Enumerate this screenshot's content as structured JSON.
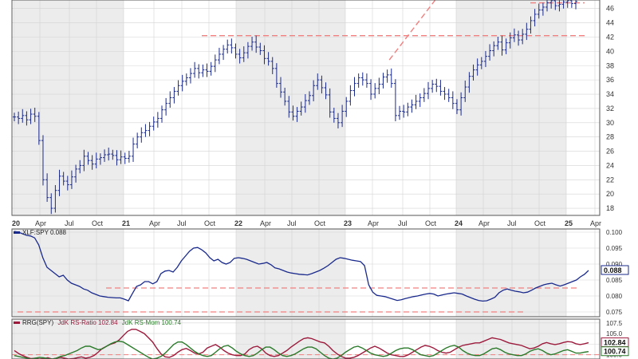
{
  "chart_data": [
    {
      "type": "ohlc",
      "title": "",
      "ylim": [
        17,
        47.2
      ],
      "y_ticks": [
        18,
        20,
        22,
        24,
        26,
        28,
        30,
        32,
        34,
        36,
        38,
        40,
        42,
        44,
        46
      ],
      "x_ticks": [
        "20",
        "Apr",
        "Jul",
        "Oct",
        "21",
        "Apr",
        "Jul",
        "Oct",
        "22",
        "Apr",
        "Jul",
        "Oct",
        "23",
        "Apr",
        "Jul",
        "Oct",
        "24",
        "Apr",
        "Jul",
        "Oct",
        "25",
        "Apr"
      ],
      "grid": true,
      "series": [
        {
          "key": "price",
          "values": [
            30.8,
            30.6,
            31.0,
            30.4,
            31.2,
            30.9,
            27.5,
            22.0,
            19.5,
            18.0,
            20.5,
            22.5,
            21.8,
            21.3,
            22.4,
            23.5,
            24.0,
            25.3,
            24.7,
            24.2,
            24.9,
            25.1,
            25.5,
            25.6,
            25.4,
            24.8,
            25.2,
            25.0,
            25.3,
            27.0,
            28.0,
            28.6,
            28.9,
            29.5,
            30.1,
            30.6,
            31.8,
            32.7,
            33.5,
            34.4,
            35.2,
            35.8,
            36.3,
            36.9,
            37.6,
            37.0,
            37.4,
            37.2,
            37.9,
            38.8,
            39.6,
            40.3,
            40.9,
            40.5,
            39.6,
            39.1,
            39.8,
            40.7,
            41.3,
            40.6,
            40.1,
            39.0,
            38.6,
            37.6,
            35.5,
            34.3,
            33.0,
            31.5,
            30.9,
            31.6,
            32.2,
            33.1,
            33.8,
            35.2,
            36.0,
            34.9,
            33.9,
            31.5,
            30.6,
            30.0,
            31.6,
            33.0,
            34.5,
            35.5,
            36.3,
            36.0,
            35.5,
            34.0,
            34.8,
            35.4,
            36.4,
            36.7,
            35.5,
            31.0,
            31.6,
            31.5,
            32.2,
            32.5,
            33.0,
            33.5,
            34.1,
            34.8,
            35.4,
            35.1,
            34.4,
            34.0,
            33.5,
            32.7,
            31.8,
            33.5,
            35.0,
            36.5,
            37.4,
            38.1,
            38.6,
            39.3,
            40.1,
            40.8,
            41.3,
            40.2,
            41.2,
            41.9,
            42.3,
            41.6,
            42.4,
            43.1,
            44.3,
            45.2,
            45.8,
            46.2,
            46.8,
            47.1,
            46.4,
            46.6,
            46.9,
            47.1,
            46.7,
            47.0
          ],
          "color": "#1a2a8c"
        }
      ],
      "reference_lines": [
        {
          "y": 42.2,
          "color": "#f08080"
        },
        {
          "y": 46.8,
          "color": "#f08080"
        }
      ],
      "trend_lines": [
        {
          "from": [
            91.5,
            38.8
          ],
          "to": [
            102.7,
            47.2
          ],
          "color": "#f08080"
        }
      ]
    },
    {
      "type": "line",
      "title": "XLF:SPY 0.088",
      "legend": [
        "XLF:SPY 0.088"
      ],
      "ylim": [
        0.0735,
        0.101
      ],
      "y_ticks": [
        "0.100",
        "0.095",
        "0.090",
        "0.085",
        "0.080",
        "0.075"
      ],
      "last_value_label": "0.088",
      "grid": true,
      "series": [
        {
          "name": "XLF:SPY",
          "values": [
            0.1002,
            0.1,
            0.0995,
            0.099,
            0.0988,
            0.0982,
            0.096,
            0.092,
            0.089,
            0.088,
            0.087,
            0.086,
            0.0865,
            0.085,
            0.084,
            0.0835,
            0.083,
            0.0822,
            0.0818,
            0.081,
            0.0805,
            0.08,
            0.0798,
            0.0796,
            0.0795,
            0.0794,
            0.0794,
            0.079,
            0.0785,
            0.0808,
            0.083,
            0.0835,
            0.0845,
            0.0845,
            0.0838,
            0.0845,
            0.087,
            0.0878,
            0.088,
            0.0875,
            0.089,
            0.091,
            0.0925,
            0.094,
            0.095,
            0.0952,
            0.0945,
            0.0935,
            0.092,
            0.091,
            0.0915,
            0.0905,
            0.09,
            0.0905,
            0.0918,
            0.092,
            0.0918,
            0.0915,
            0.091,
            0.0905,
            0.09,
            0.0902,
            0.0905,
            0.0898,
            0.0888,
            0.0885,
            0.088,
            0.0875,
            0.0872,
            0.087,
            0.0868,
            0.0867,
            0.0866,
            0.087,
            0.0875,
            0.088,
            0.0887,
            0.0895,
            0.0905,
            0.0915,
            0.092,
            0.0918,
            0.0915,
            0.0912,
            0.091,
            0.0908,
            0.0895,
            0.0835,
            0.0812,
            0.0802,
            0.08,
            0.0798,
            0.0794,
            0.079,
            0.0786,
            0.0788,
            0.0792,
            0.0795,
            0.0798,
            0.08,
            0.0803,
            0.0806,
            0.0808,
            0.0806,
            0.08,
            0.0803,
            0.0806,
            0.0808,
            0.081,
            0.0808,
            0.0806,
            0.08,
            0.0795,
            0.079,
            0.0786,
            0.0784,
            0.0785,
            0.079,
            0.0796,
            0.081,
            0.0818,
            0.0822,
            0.0818,
            0.0815,
            0.0813,
            0.081,
            0.0812,
            0.0818,
            0.0825,
            0.083,
            0.0835,
            0.0838,
            0.084,
            0.0835,
            0.0831,
            0.0835,
            0.084,
            0.0845,
            0.085,
            0.086,
            0.0868,
            0.088
          ],
          "color": "#1a2a8c"
        }
      ],
      "reference_lines": [
        {
          "y": 0.0825,
          "color": "#f08080"
        },
        {
          "y": 0.075,
          "color": "#f08080"
        }
      ]
    },
    {
      "type": "line",
      "title": "RRG(SPY) JdK RS-Ratio 102.84 JdK RS-Mom 100.74",
      "legend": [
        "RRG(SPY)",
        "JdK RS-Ratio 102.84",
        "JdK RS-Mom 100.74"
      ],
      "ylim": [
        99.0,
        108.4
      ],
      "y_ticks": [
        "107.5",
        "105.0",
        "102.5",
        "100.0"
      ],
      "last_value_labels": [
        "102.84",
        "100.74"
      ],
      "grid": true,
      "series": [
        {
          "name": "JdK RS-Ratio",
          "values": [
            101.0,
            100.3,
            99.8,
            99.4,
            99.1,
            99.2,
            99.0,
            99.1,
            99.3,
            99.0,
            99.2,
            99.4,
            99.2,
            99.0,
            99.1,
            99.3,
            99.5,
            99.2,
            99.4,
            99.8,
            100.6,
            101.5,
            102.0,
            102.5,
            102.8,
            103.5,
            104.5,
            105.5,
            106.0,
            106.0,
            105.5,
            105.0,
            104.0,
            103.0,
            101.5,
            100.2,
            99.5,
            99.4,
            99.8,
            100.6,
            101.2,
            101.5,
            101.0,
            100.4,
            100.2,
            100.6,
            101.6,
            102.0,
            102.4,
            101.8,
            101.0,
            100.4,
            100.0,
            99.8,
            99.8,
            100.2,
            101.2,
            101.8,
            102.0,
            101.4,
            100.4,
            99.8,
            99.6,
            99.8,
            100.4,
            101.0,
            101.8,
            102.5,
            103.2,
            103.8,
            104.0,
            103.8,
            103.4,
            103.0,
            102.8,
            102.0,
            101.0,
            100.2,
            99.6,
            99.2,
            99.2,
            99.4,
            99.8,
            100.4,
            101.0,
            101.6,
            102.0,
            101.6,
            101.0,
            100.4,
            100.0,
            99.8,
            99.6,
            99.6,
            100.0,
            100.6,
            101.2,
            101.8,
            102.2,
            102.0,
            101.6,
            101.0,
            100.6,
            100.4,
            100.6,
            101.2,
            101.8,
            102.2,
            102.4,
            102.6,
            102.8,
            102.8,
            103.2,
            103.6,
            104.0,
            103.8,
            103.6,
            103.2,
            102.8,
            102.6,
            102.4,
            102.2,
            101.8,
            101.4,
            101.6,
            102.0,
            102.6,
            102.9,
            102.6,
            102.4,
            102.6,
            102.9,
            103.1,
            103.0,
            102.6,
            102.4,
            102.6,
            102.84
          ],
          "color": "#9c1a3c"
        },
        {
          "name": "JdK RS-Mom",
          "values": [
            99.8,
            99.6,
            99.4,
            99.2,
            99.0,
            99.2,
            99.4,
            99.3,
            99.1,
            99.0,
            99.2,
            99.6,
            99.8,
            100.2,
            100.6,
            101.0,
            101.6,
            102.0,
            102.0,
            101.6,
            101.2,
            101.4,
            102.0,
            102.6,
            103.0,
            103.2,
            103.0,
            102.4,
            101.8,
            101.2,
            100.6,
            100.0,
            99.4,
            99.0,
            99.2,
            99.6,
            100.4,
            101.4,
            102.4,
            103.0,
            103.0,
            102.4,
            101.6,
            100.8,
            100.2,
            99.8,
            99.6,
            99.8,
            100.6,
            101.4,
            102.0,
            102.2,
            101.6,
            100.8,
            100.2,
            99.8,
            99.6,
            99.8,
            100.4,
            101.2,
            101.8,
            101.8,
            101.2,
            100.4,
            99.8,
            99.6,
            99.8,
            100.2,
            100.8,
            101.4,
            101.8,
            101.8,
            101.4,
            100.6,
            99.8,
            99.2,
            99.0,
            99.2,
            99.8,
            100.6,
            101.2,
            101.8,
            102.0,
            101.6,
            101.0,
            100.4,
            100.0,
            99.8,
            99.6,
            99.8,
            100.4,
            101.0,
            101.4,
            101.6,
            101.6,
            101.2,
            100.6,
            100.0,
            99.8,
            99.6,
            99.8,
            100.4,
            101.0,
            101.6,
            102.0,
            102.2,
            101.8,
            101.0,
            100.4,
            100.0,
            99.8,
            99.8,
            100.2,
            100.8,
            101.4,
            101.6,
            101.2,
            100.6,
            100.2,
            100.0,
            99.8,
            99.8,
            100.2,
            100.8,
            101.2,
            101.4,
            101.0,
            100.4,
            100.0,
            100.2,
            100.6,
            101.0,
            101.2,
            100.8,
            100.4,
            100.4,
            100.6,
            100.74
          ],
          "color": "#2a7a2a"
        }
      ],
      "reference_lines": [
        {
          "y": 100.0,
          "color": "#f08080"
        }
      ]
    }
  ],
  "colors": {
    "shade_band": "#ececec",
    "grid": "#d4d4d4",
    "frame": "#555555",
    "reference": "#f08080"
  }
}
